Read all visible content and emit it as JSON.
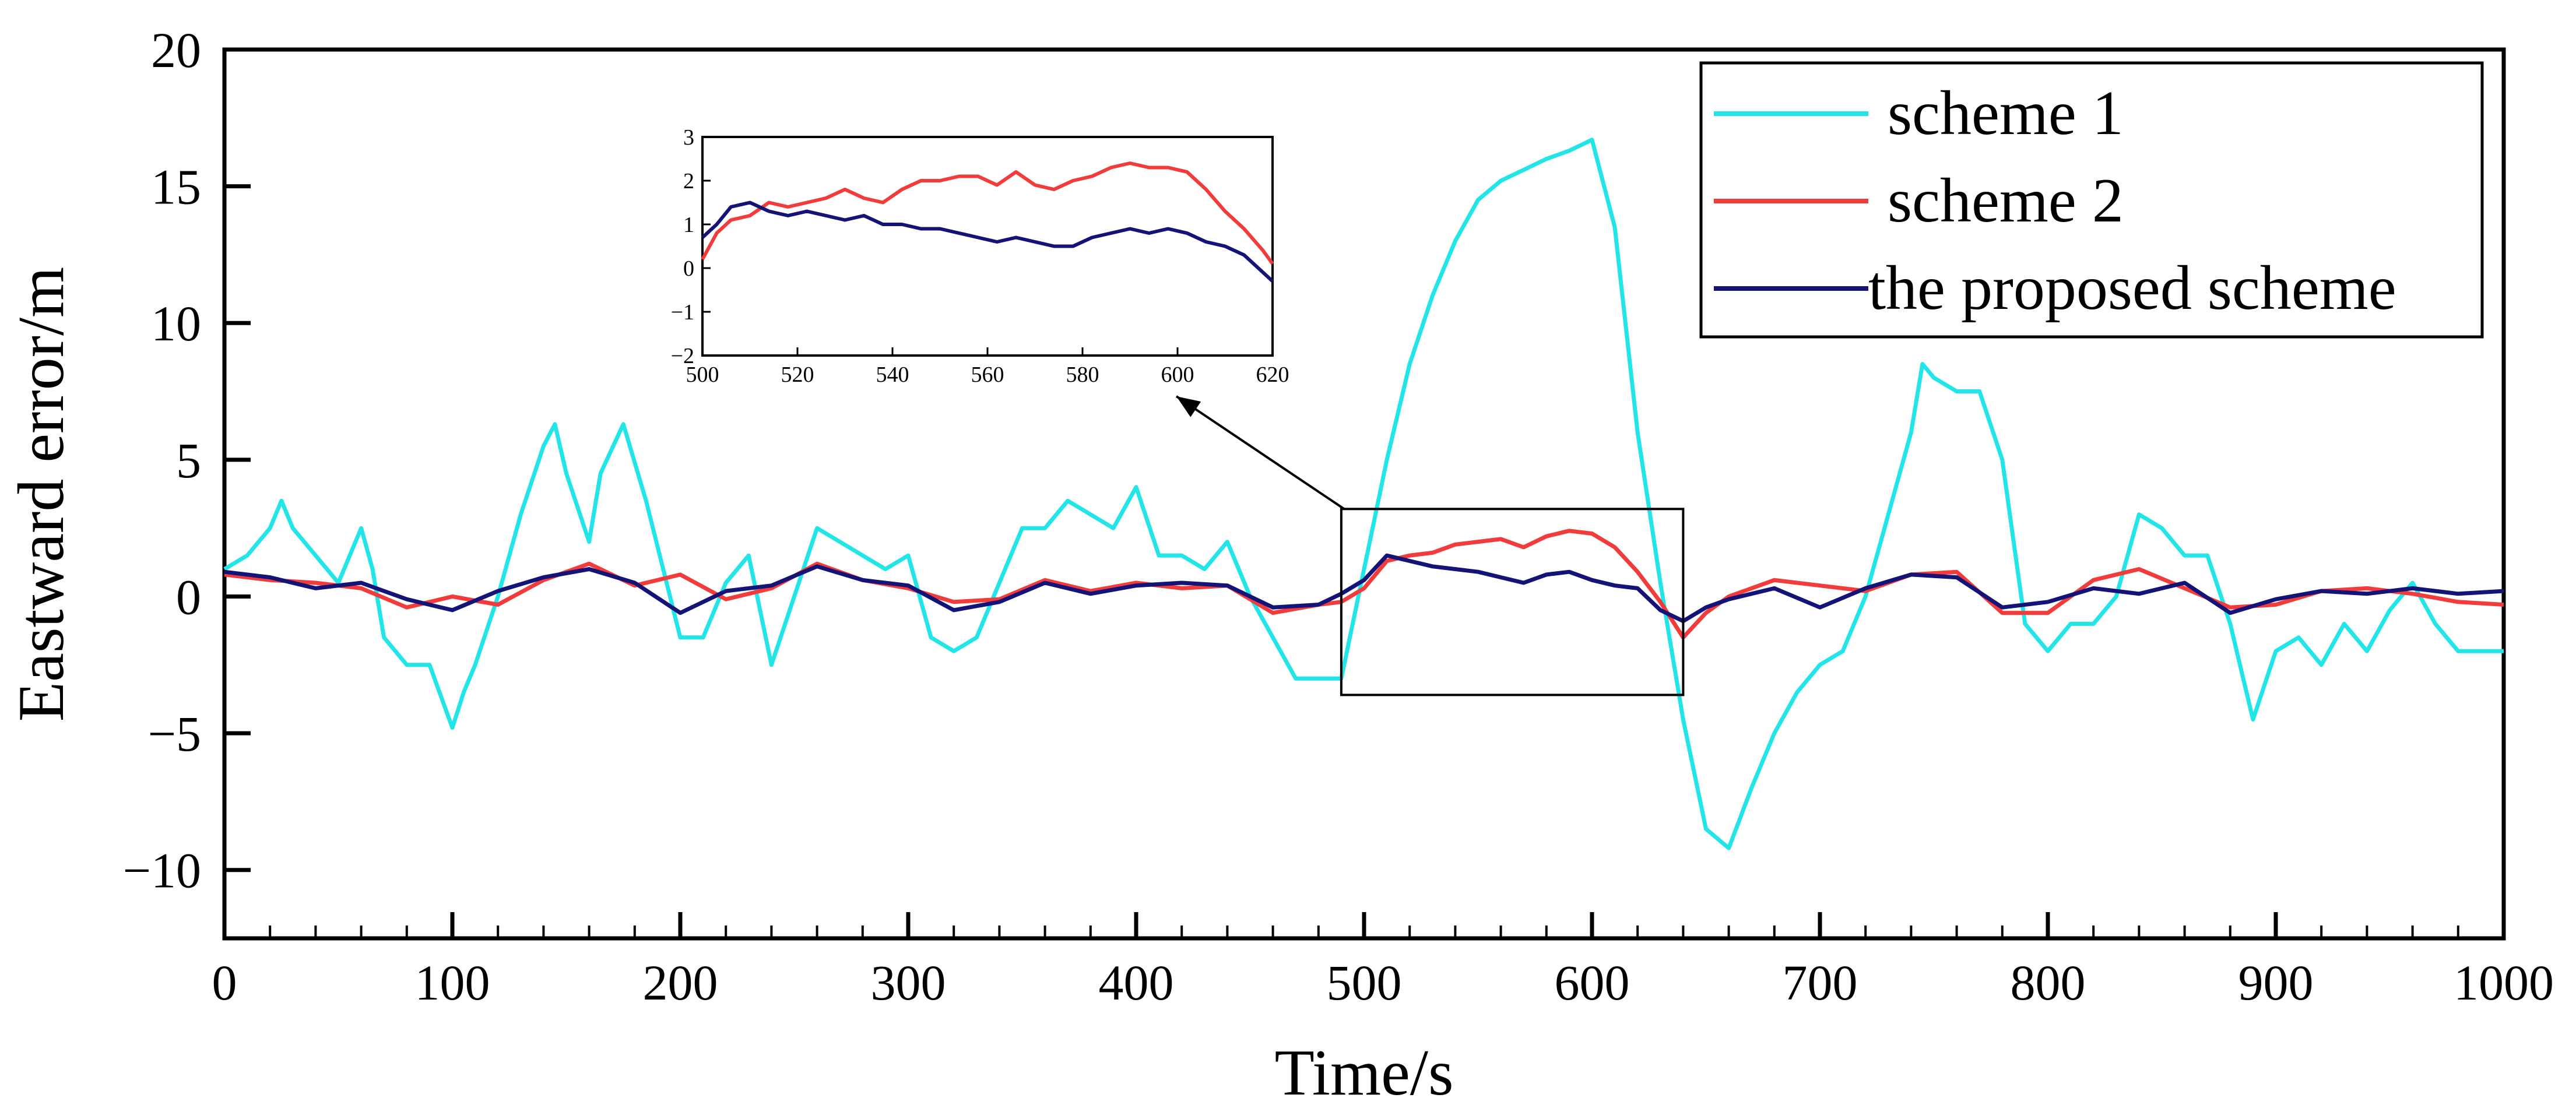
{
  "chart_data": {
    "type": "line",
    "title": "",
    "xlabel": "Time/s",
    "ylabel": "Eastward error/m",
    "xlim": [
      0,
      1000
    ],
    "ylim": [
      -12.5,
      20
    ],
    "xticks": [
      0,
      100,
      200,
      300,
      400,
      500,
      600,
      700,
      800,
      900,
      1000
    ],
    "yticks": [
      -10,
      -5,
      0,
      5,
      10,
      15,
      20
    ],
    "xtick_labels": [
      "0",
      "100",
      "200",
      "300",
      "400",
      "500",
      "600",
      "700",
      "800",
      "900",
      "1000"
    ],
    "ytick_labels": [
      "−10",
      "−5",
      "0",
      "5",
      "10",
      "15",
      "20"
    ],
    "grid": false,
    "legend_position": "top-right",
    "series": [
      {
        "name": "scheme 1",
        "color": "#22e5e8",
        "x": [
          0,
          10,
          20,
          25,
          30,
          40,
          50,
          55,
          60,
          65,
          70,
          80,
          90,
          100,
          105,
          110,
          120,
          130,
          140,
          145,
          150,
          160,
          165,
          175,
          185,
          200,
          210,
          220,
          230,
          240,
          250,
          260,
          270,
          280,
          290,
          300,
          310,
          320,
          330,
          340,
          350,
          360,
          370,
          380,
          390,
          400,
          410,
          420,
          430,
          440,
          450,
          460,
          470,
          480,
          490,
          500,
          510,
          520,
          530,
          540,
          550,
          560,
          570,
          580,
          590,
          600,
          610,
          620,
          630,
          640,
          650,
          660,
          670,
          680,
          690,
          700,
          710,
          720,
          730,
          740,
          745,
          750,
          760,
          770,
          780,
          785,
          790,
          800,
          810,
          820,
          830,
          840,
          850,
          860,
          870,
          880,
          890,
          900,
          910,
          920,
          930,
          940,
          950,
          960,
          970,
          980,
          990,
          1000
        ],
        "values": [
          1,
          1.5,
          2.5,
          3.5,
          2.5,
          1.5,
          0.5,
          1.5,
          2.5,
          1,
          -1.5,
          -2.5,
          -2.5,
          -4.8,
          -3.5,
          -2.5,
          0,
          3,
          5.5,
          6.3,
          4.5,
          2,
          4.5,
          6.3,
          3.5,
          -1.5,
          -1.5,
          0.5,
          1.5,
          -2.5,
          0,
          2.5,
          2,
          1.5,
          1,
          1.5,
          -1.5,
          -2,
          -1.5,
          0.5,
          2.5,
          2.5,
          3.5,
          3,
          2.5,
          4,
          1.5,
          1.5,
          1,
          2,
          0,
          -1.5,
          -3,
          -3,
          -3,
          1,
          5,
          8.5,
          11,
          13,
          14.5,
          15.2,
          15.6,
          16,
          16.3,
          16.7,
          13.5,
          6,
          0.5,
          -4.5,
          -8.5,
          -9.2,
          -7,
          -5,
          -3.5,
          -2.5,
          -2,
          0,
          3,
          6,
          8.5,
          8,
          7.5,
          7.5,
          5,
          2,
          -1,
          -2,
          -1,
          -1,
          0,
          3,
          2.5,
          1.5,
          1.5,
          -1,
          -4.5,
          -2,
          -1.5,
          -2.5,
          -1,
          -2,
          -0.5,
          0.5,
          -1,
          -2,
          -2,
          -2
        ]
      },
      {
        "name": "scheme 2",
        "color": "#f23b3b",
        "x": [
          0,
          20,
          40,
          60,
          80,
          100,
          120,
          140,
          160,
          180,
          200,
          220,
          240,
          260,
          280,
          300,
          320,
          340,
          360,
          380,
          400,
          420,
          440,
          460,
          480,
          490,
          500,
          510,
          520,
          530,
          540,
          550,
          560,
          570,
          580,
          590,
          600,
          610,
          620,
          630,
          640,
          650,
          660,
          680,
          700,
          720,
          740,
          760,
          780,
          800,
          820,
          840,
          860,
          880,
          900,
          920,
          940,
          960,
          980,
          1000
        ],
        "values": [
          0.8,
          0.6,
          0.5,
          0.3,
          -0.4,
          0,
          -0.3,
          0.6,
          1.2,
          0.4,
          0.8,
          -0.1,
          0.3,
          1.2,
          0.6,
          0.3,
          -0.2,
          -0.1,
          0.6,
          0.2,
          0.5,
          0.3,
          0.4,
          -0.6,
          -0.3,
          -0.2,
          0.3,
          1.3,
          1.5,
          1.6,
          1.9,
          2.0,
          2.1,
          1.8,
          2.2,
          2.4,
          2.3,
          1.8,
          0.9,
          -0.2,
          -1.5,
          -0.6,
          0,
          0.6,
          0.4,
          0.2,
          0.8,
          0.9,
          -0.6,
          -0.6,
          0.6,
          1.0,
          0.3,
          -0.4,
          -0.3,
          0.2,
          0.3,
          0.1,
          -0.2,
          -0.3
        ]
      },
      {
        "name": "the proposed scheme",
        "color": "#141478",
        "x": [
          0,
          20,
          40,
          60,
          80,
          100,
          120,
          140,
          160,
          180,
          200,
          220,
          240,
          260,
          280,
          300,
          320,
          340,
          360,
          380,
          400,
          420,
          440,
          460,
          480,
          490,
          500,
          510,
          520,
          530,
          540,
          550,
          560,
          570,
          580,
          590,
          600,
          610,
          620,
          630,
          640,
          650,
          660,
          680,
          700,
          720,
          740,
          760,
          780,
          800,
          820,
          840,
          860,
          880,
          900,
          920,
          940,
          960,
          980,
          1000
        ],
        "values": [
          0.9,
          0.7,
          0.3,
          0.5,
          -0.1,
          -0.5,
          0.2,
          0.7,
          1.0,
          0.5,
          -0.6,
          0.2,
          0.4,
          1.1,
          0.6,
          0.4,
          -0.5,
          -0.2,
          0.5,
          0.1,
          0.4,
          0.5,
          0.4,
          -0.4,
          -0.3,
          0.1,
          0.6,
          1.5,
          1.3,
          1.1,
          1.0,
          0.9,
          0.7,
          0.5,
          0.8,
          0.9,
          0.6,
          0.4,
          0.3,
          -0.5,
          -0.9,
          -0.4,
          -0.1,
          0.3,
          -0.4,
          0.3,
          0.8,
          0.7,
          -0.4,
          -0.2,
          0.3,
          0.1,
          0.5,
          -0.6,
          -0.1,
          0.2,
          0.1,
          0.3,
          0.1,
          0.2
        ]
      }
    ],
    "inset": {
      "xlim": [
        500,
        620
      ],
      "ylim": [
        -2,
        3
      ],
      "xticks": [
        500,
        520,
        540,
        560,
        580,
        600,
        620
      ],
      "yticks": [
        -2,
        -1,
        0,
        1,
        2,
        3
      ],
      "xtick_labels": [
        "500",
        "520",
        "540",
        "560",
        "580",
        "600",
        "620"
      ],
      "ytick_labels": [
        "−2",
        "−1",
        "0",
        "1",
        "2",
        "3"
      ],
      "zoom_region": {
        "x": [
          490,
          640
        ],
        "y": [
          -3.6,
          3.2
        ]
      },
      "series": [
        {
          "name": "scheme 2",
          "color": "#f23b3b",
          "x": [
            500,
            503,
            506,
            510,
            514,
            518,
            522,
            526,
            530,
            534,
            538,
            542,
            546,
            550,
            554,
            558,
            562,
            566,
            570,
            574,
            578,
            582,
            586,
            590,
            594,
            598,
            602,
            606,
            610,
            614,
            618,
            620
          ],
          "values": [
            0.2,
            0.8,
            1.1,
            1.2,
            1.5,
            1.4,
            1.5,
            1.6,
            1.8,
            1.6,
            1.5,
            1.8,
            2.0,
            2.0,
            2.1,
            2.1,
            1.9,
            2.2,
            1.9,
            1.8,
            2.0,
            2.1,
            2.3,
            2.4,
            2.3,
            2.3,
            2.2,
            1.8,
            1.3,
            0.9,
            0.4,
            0.1
          ]
        },
        {
          "name": "the proposed scheme",
          "color": "#141478",
          "x": [
            500,
            503,
            506,
            510,
            514,
            518,
            522,
            526,
            530,
            534,
            538,
            542,
            546,
            550,
            554,
            558,
            562,
            566,
            570,
            574,
            578,
            582,
            586,
            590,
            594,
            598,
            602,
            606,
            610,
            614,
            618,
            620
          ],
          "values": [
            0.7,
            1.0,
            1.4,
            1.5,
            1.3,
            1.2,
            1.3,
            1.2,
            1.1,
            1.2,
            1.0,
            1.0,
            0.9,
            0.9,
            0.8,
            0.7,
            0.6,
            0.7,
            0.6,
            0.5,
            0.5,
            0.7,
            0.8,
            0.9,
            0.8,
            0.9,
            0.8,
            0.6,
            0.5,
            0.3,
            -0.1,
            -0.3
          ]
        }
      ]
    }
  }
}
